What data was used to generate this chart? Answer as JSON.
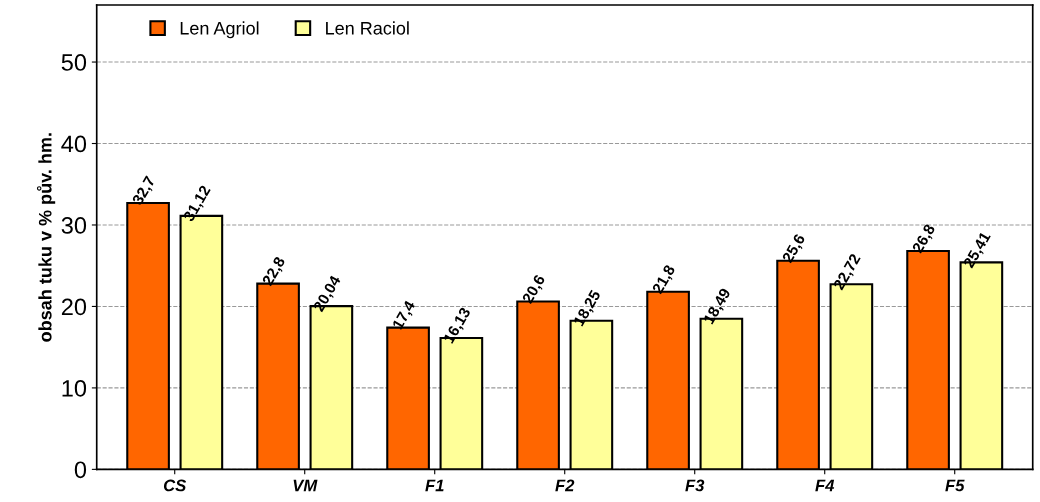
{
  "chart_data": {
    "type": "bar",
    "ylabel": "obsah tuku v % pův. hm.",
    "categories": [
      "CS",
      "VM",
      "F1",
      "F2",
      "F3",
      "F4",
      "F5"
    ],
    "series": [
      {
        "name": "Len Agriol",
        "color": "#ff6600",
        "values": [
          32.7,
          22.8,
          17.4,
          20.6,
          21.8,
          25.6,
          26.8
        ],
        "value_labels": [
          "32,7",
          "22,8",
          "17,4",
          "20,6",
          "21,8",
          "25,6",
          "26,8"
        ]
      },
      {
        "name": "Len Raciol",
        "color": "#ffff99",
        "values": [
          31.12,
          20.04,
          16.13,
          18.25,
          18.49,
          22.72,
          25.41
        ],
        "value_labels": [
          "31,12",
          "20,04",
          "16,13",
          "18,25",
          "18,49",
          "22,72",
          "25,41"
        ]
      }
    ],
    "ylim": [
      0,
      57
    ],
    "yticks": [
      0,
      10,
      20,
      30,
      40,
      50
    ],
    "grid": "y",
    "legend": "top left"
  }
}
